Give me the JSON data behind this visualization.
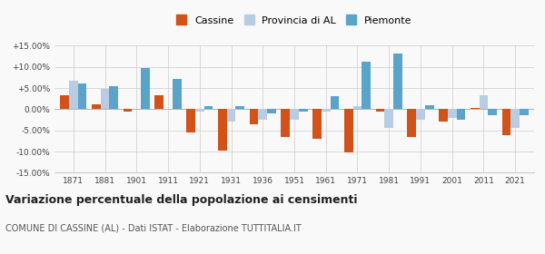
{
  "years": [
    1871,
    1881,
    1901,
    1911,
    1921,
    1931,
    1936,
    1951,
    1961,
    1971,
    1981,
    1991,
    2001,
    2011,
    2021
  ],
  "cassine": [
    3.3,
    1.2,
    -0.5,
    3.3,
    -5.5,
    -9.8,
    -3.5,
    -6.5,
    -7.0,
    -10.2,
    -0.5,
    -6.5,
    -3.0,
    0.2,
    -6.2
  ],
  "provincia_al": [
    6.8,
    4.8,
    0.0,
    0.0,
    -0.5,
    -3.0,
    -2.5,
    -2.5,
    -0.5,
    0.8,
    -4.5,
    -2.5,
    -2.0,
    3.3,
    -4.5
  ],
  "piemonte": [
    6.0,
    5.5,
    9.8,
    7.2,
    0.8,
    0.8,
    -1.0,
    -0.5,
    3.0,
    11.2,
    13.2,
    1.0,
    -2.5,
    -1.5,
    -1.5
  ],
  "color_cassine": "#d2521a",
  "color_provincia": "#b8cce4",
  "color_piemonte": "#5ba3c9",
  "ylim": [
    -15.0,
    15.0
  ],
  "yticks": [
    -15.0,
    -10.0,
    -5.0,
    0.0,
    5.0,
    10.0,
    15.0
  ],
  "title": "Variazione percentuale della popolazione ai censimenti",
  "subtitle": "COMUNE DI CASSINE (AL) - Dati ISTAT - Elaborazione TUTTITALIA.IT",
  "legend_labels": [
    "Cassine",
    "Provincia di AL",
    "Piemonte"
  ],
  "background_color": "#f9f9f9",
  "bar_width": 0.28
}
